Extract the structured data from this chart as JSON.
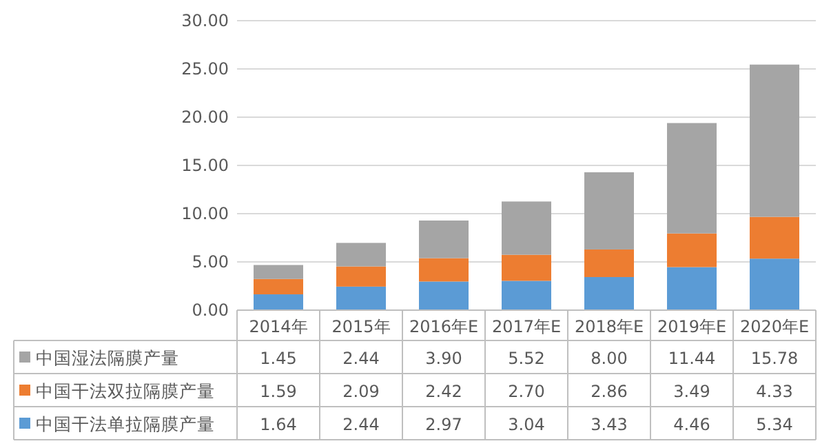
{
  "chart_data": {
    "type": "bar",
    "stacked": true,
    "categories": [
      "2014年",
      "2015年",
      "2016年E",
      "2017年E",
      "2018年E",
      "2019年E",
      "2020年E"
    ],
    "series": [
      {
        "name": "中国干法单拉隔膜产量",
        "color": "#5b9bd5",
        "values": [
          1.64,
          2.44,
          2.97,
          3.04,
          3.43,
          4.46,
          5.34
        ],
        "value_labels": [
          "1.64",
          "2.44",
          "2.97",
          "3.04",
          "3.43",
          "4.46",
          "5.34"
        ]
      },
      {
        "name": "中国干法双拉隔膜产量",
        "color": "#ed7d31",
        "values": [
          1.59,
          2.09,
          2.42,
          2.7,
          2.86,
          3.49,
          4.33
        ],
        "value_labels": [
          "1.59",
          "2.09",
          "2.42",
          "2.70",
          "2.86",
          "3.49",
          "4.33"
        ]
      },
      {
        "name": "中国湿法隔膜产量",
        "color": "#a5a5a5",
        "values": [
          1.45,
          2.44,
          3.9,
          5.52,
          8.0,
          11.44,
          15.78
        ],
        "value_labels": [
          "1.45",
          "2.44",
          "3.90",
          "5.52",
          "8.00",
          "11.44",
          "15.78"
        ]
      }
    ],
    "ylim": [
      0,
      30
    ],
    "yticks": [
      {
        "value": 0,
        "label": "0.00"
      },
      {
        "value": 5,
        "label": "5.00"
      },
      {
        "value": 10,
        "label": "10.00"
      },
      {
        "value": 15,
        "label": "15.00"
      },
      {
        "value": 20,
        "label": "20.00"
      },
      {
        "value": 25,
        "label": "25.00"
      },
      {
        "value": 30,
        "label": "30.00"
      }
    ],
    "grid": "y",
    "legend": "bottom"
  }
}
